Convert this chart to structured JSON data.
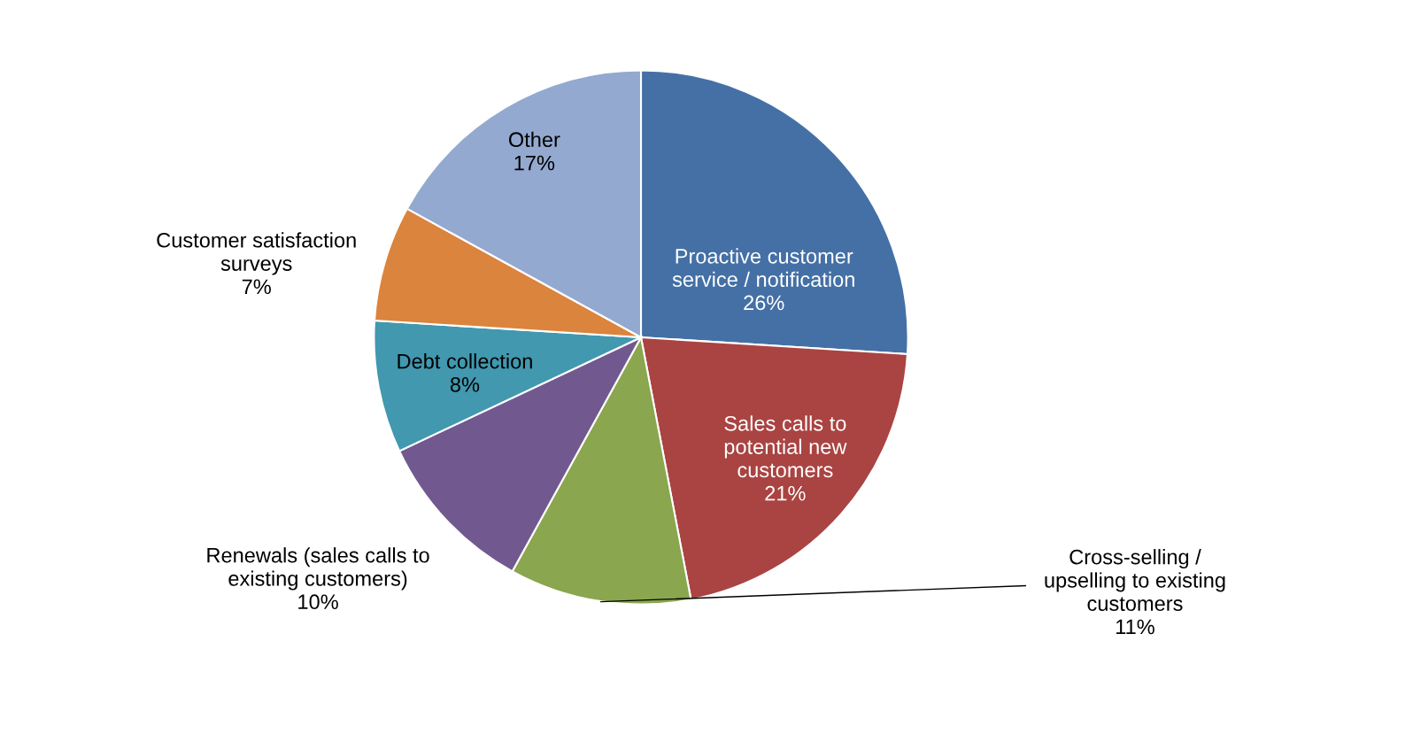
{
  "chart_data": {
    "type": "pie",
    "categories": [
      "Proactive customer\nservice / notification",
      "Sales calls to\npotential new\ncustomers",
      "Cross-selling /\nupselling to existing\ncustomers",
      "Renewals (sales calls to\nexisting customers)",
      "Debt collection",
      "Customer satisfaction\nsurveys",
      "Other"
    ],
    "values": [
      26,
      21,
      11,
      10,
      8,
      7,
      17
    ],
    "value_labels": [
      "26%",
      "21%",
      "11%",
      "10%",
      "8%",
      "7%",
      "17%"
    ],
    "colors": [
      "#4470a6",
      "#a94442",
      "#8aa64e",
      "#71598f",
      "#4198af",
      "#db843d",
      "#93a9d0"
    ]
  }
}
